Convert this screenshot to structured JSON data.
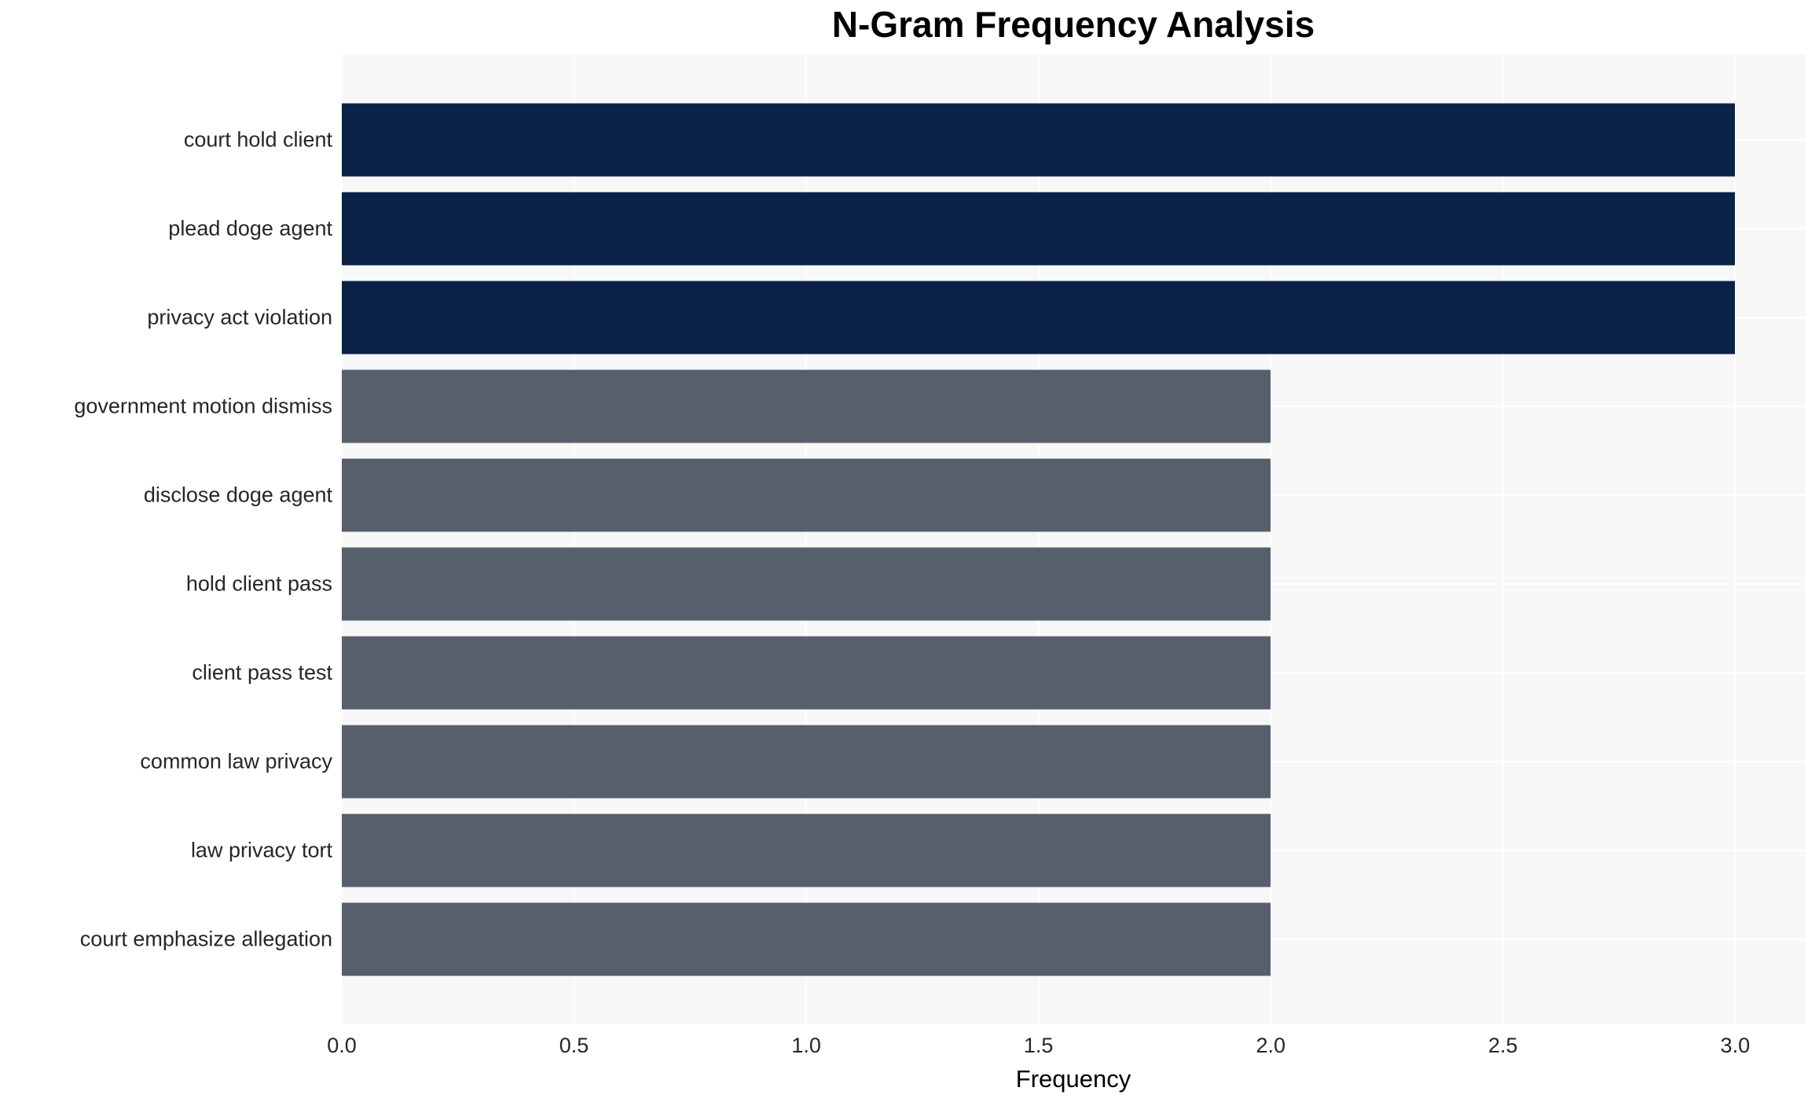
{
  "chart_data": {
    "type": "bar",
    "orientation": "horizontal",
    "title": "N-Gram Frequency Analysis",
    "xlabel": "Frequency",
    "ylabel": "",
    "categories": [
      "court hold client",
      "plead doge agent",
      "privacy act violation",
      "government motion dismiss",
      "disclose doge agent",
      "hold client pass",
      "client pass test",
      "common law privacy",
      "law privacy tort",
      "court emphasize allegation"
    ],
    "values": [
      3,
      3,
      3,
      2,
      2,
      2,
      2,
      2,
      2,
      2
    ],
    "bar_colors": [
      "#0a2246",
      "#0a2246",
      "#0a2246",
      "#575e6c",
      "#575e6c",
      "#575e6c",
      "#575e6c",
      "#575e6c",
      "#575e6c",
      "#575e6c"
    ],
    "xlim": [
      0,
      3.15
    ],
    "xticks": [
      0.0,
      0.5,
      1.0,
      1.5,
      2.0,
      2.5,
      3.0
    ],
    "xtick_labels": [
      "0.0",
      "0.5",
      "1.0",
      "1.5",
      "2.0",
      "2.5",
      "3.0"
    ],
    "grid": true,
    "gridline_color": "#ffffff",
    "plot_background": "#f7f7f7",
    "figure_background": "#ffffff",
    "tick_text_color": "#262626",
    "title_color": "#000000",
    "legend": false
  }
}
